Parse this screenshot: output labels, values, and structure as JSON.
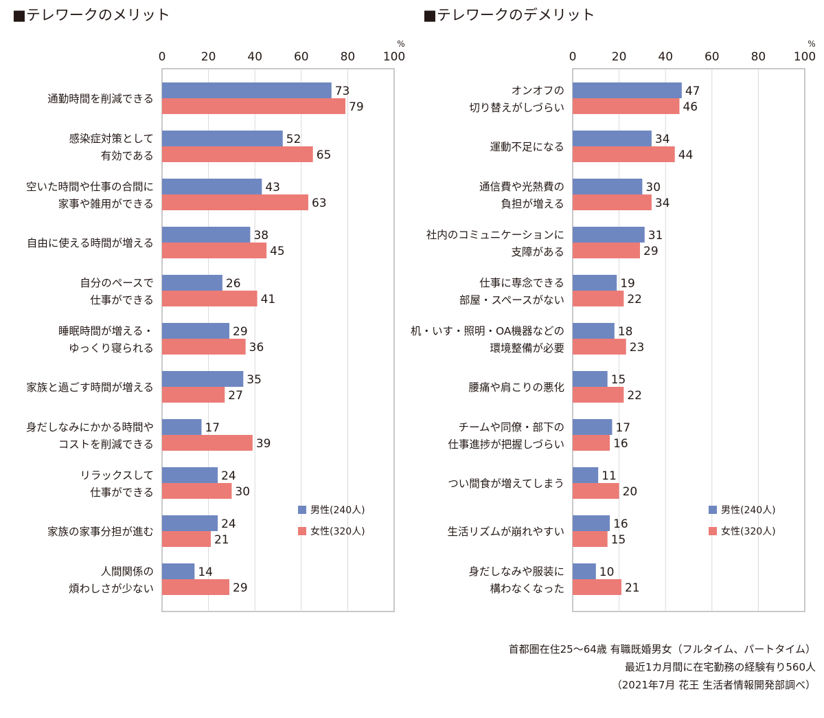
{
  "colors": {
    "male": "#6f87c0",
    "female": "#ec7b76",
    "frame": "#b5b5b5",
    "grid": "#d9d9d9"
  },
  "chart_data": [
    {
      "type": "bar",
      "orientation": "horizontal",
      "title": "■テレワークのメリット",
      "unit": "%",
      "xlim": [
        0,
        100
      ],
      "ticks": [
        "0",
        "20",
        "40",
        "60",
        "80",
        "100"
      ],
      "tick_values": [
        0,
        20,
        40,
        60,
        80,
        100
      ],
      "legend_position": "bottom-right",
      "categories": [
        [
          "通勤時間を削減できる"
        ],
        [
          "感染症対策として",
          "有効である"
        ],
        [
          "空いた時間や仕事の合間に",
          "家事や雑用ができる"
        ],
        [
          "自由に使える時間が増える"
        ],
        [
          "自分のペースで",
          "仕事ができる"
        ],
        [
          "睡眠時間が増える・",
          "ゆっくり寝られる"
        ],
        [
          "家族と過ごす時間が増える"
        ],
        [
          "身だしなみにかかる時間や",
          "コストを削減できる"
        ],
        [
          "リラックスして",
          "仕事ができる"
        ],
        [
          "家族の家事分担が進む"
        ],
        [
          "人間関係の",
          "煩わしさが少ない"
        ]
      ],
      "series": [
        {
          "name": "男性(240人)",
          "color": "#6f87c0",
          "values": [
            73,
            52,
            43,
            38,
            26,
            29,
            35,
            17,
            24,
            24,
            14
          ]
        },
        {
          "name": "女性(320人)",
          "color": "#ec7b76",
          "values": [
            79,
            65,
            63,
            45,
            41,
            36,
            27,
            39,
            30,
            21,
            29
          ]
        }
      ]
    },
    {
      "type": "bar",
      "orientation": "horizontal",
      "title": "■テレワークのデメリット",
      "unit": "%",
      "xlim": [
        0,
        100
      ],
      "ticks": [
        "0",
        "20",
        "40",
        "60",
        "80",
        "100"
      ],
      "tick_values": [
        0,
        20,
        40,
        60,
        80,
        100
      ],
      "legend_position": "bottom-right",
      "categories": [
        [
          "オンオフの",
          "切り替えがしづらい"
        ],
        [
          "運動不足になる"
        ],
        [
          "通信費や光熱費の",
          "負担が増える"
        ],
        [
          "社内のコミュニケーションに",
          "支障がある"
        ],
        [
          "仕事に専念できる",
          "部屋・スペースがない"
        ],
        [
          "机・いす・照明・OA機器などの",
          "環境整備が必要"
        ],
        [
          "腰痛や肩こりの悪化"
        ],
        [
          "チームや同僚・部下の",
          "仕事進捗が把握しづらい"
        ],
        [
          "つい間食が増えてしまう"
        ],
        [
          "生活リズムが崩れやすい"
        ],
        [
          "身だしなみや服装に",
          "構わなくなった"
        ]
      ],
      "series": [
        {
          "name": "男性(240人)",
          "color": "#6f87c0",
          "values": [
            47,
            34,
            30,
            31,
            19,
            18,
            15,
            17,
            11,
            16,
            10
          ]
        },
        {
          "name": "女性(320人)",
          "color": "#ec7b76",
          "values": [
            46,
            44,
            34,
            29,
            22,
            23,
            22,
            16,
            20,
            15,
            21
          ]
        }
      ]
    }
  ],
  "source": {
    "line1": "首都圏在住25〜64歳 有職既婚男女（フルタイム、パートタイム）",
    "line2": "最近1カ月間に在宅勤務の経験有り560人",
    "line3": "（2021年7月 花王 生活者情報開発部調べ）"
  }
}
